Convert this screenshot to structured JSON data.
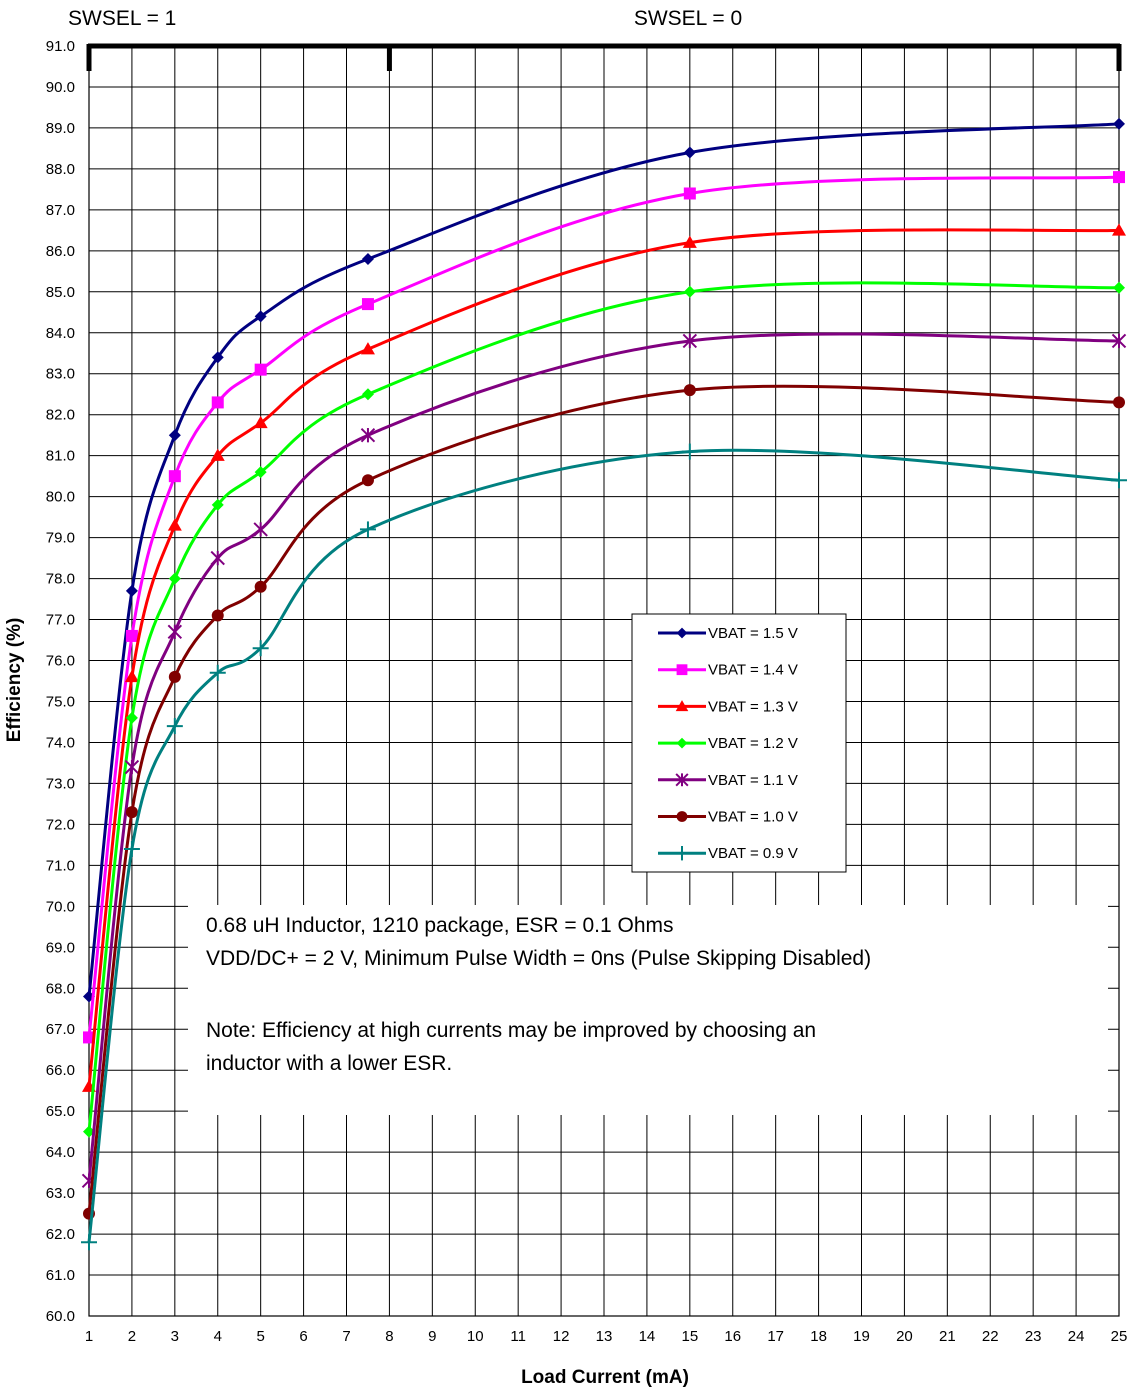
{
  "chart_data": {
    "type": "line",
    "xlabel": "Load Current (mA)",
    "ylabel": "Efficiency (%)",
    "xlim": [
      1,
      25
    ],
    "ylim": [
      60,
      91
    ],
    "x_ticks": [
      "1",
      "2",
      "3",
      "4",
      "5",
      "6",
      "7",
      "8",
      "9",
      "10",
      "11",
      "12",
      "13",
      "14",
      "15",
      "16",
      "17",
      "18",
      "19",
      "20",
      "21",
      "22",
      "23",
      "24",
      "25"
    ],
    "y_ticks": [
      "60.0",
      "61.0",
      "62.0",
      "63.0",
      "64.0",
      "65.0",
      "66.0",
      "67.0",
      "68.0",
      "69.0",
      "70.0",
      "71.0",
      "72.0",
      "73.0",
      "74.0",
      "75.0",
      "76.0",
      "77.0",
      "78.0",
      "79.0",
      "80.0",
      "81.0",
      "82.0",
      "83.0",
      "84.0",
      "85.0",
      "86.0",
      "87.0",
      "88.0",
      "89.0",
      "90.0",
      "91.0"
    ],
    "grid": true,
    "legend_position": "right-middle",
    "x": [
      1,
      2,
      3,
      4,
      5,
      7.5,
      15,
      25
    ],
    "series": [
      {
        "name": "VBAT = 1.5 V",
        "color": "#000080",
        "marker": "diamond",
        "values": [
          67.8,
          77.7,
          81.5,
          83.4,
          84.4,
          85.8,
          88.4,
          89.1
        ]
      },
      {
        "name": "VBAT = 1.4 V",
        "color": "#ff00ff",
        "marker": "square",
        "values": [
          66.8,
          76.6,
          80.5,
          82.3,
          83.1,
          84.7,
          87.4,
          87.8
        ]
      },
      {
        "name": "VBAT = 1.3 V",
        "color": "#ff0000",
        "marker": "triangle",
        "values": [
          65.6,
          75.6,
          79.3,
          81.0,
          81.8,
          83.6,
          86.2,
          86.5
        ]
      },
      {
        "name": "VBAT = 1.2 V",
        "color": "#00ff00",
        "marker": "diamond",
        "values": [
          64.5,
          74.6,
          78.0,
          79.8,
          80.6,
          82.5,
          85.0,
          85.1
        ]
      },
      {
        "name": "VBAT = 1.1 V",
        "color": "#800080",
        "marker": "star",
        "values": [
          63.3,
          73.4,
          76.7,
          78.5,
          79.2,
          81.5,
          83.8,
          83.8
        ]
      },
      {
        "name": "VBAT = 1.0 V",
        "color": "#800000",
        "marker": "circle",
        "values": [
          62.5,
          72.3,
          75.6,
          77.1,
          77.8,
          80.4,
          82.6,
          82.3
        ]
      },
      {
        "name": "VBAT = 0.9 V",
        "color": "#008080",
        "marker": "plus",
        "values": [
          61.8,
          71.4,
          74.4,
          75.7,
          76.3,
          79.2,
          81.1,
          80.4
        ]
      }
    ],
    "annotations": {
      "swsel_left": "SWSEL = 1",
      "swsel_right": "SWSEL = 0",
      "swsel_boundary_x": 8,
      "note_line1": "0.68 uH Inductor, 1210 package, ESR = 0.1 Ohms",
      "note_line2": "VDD/DC+ = 2 V, Minimum Pulse Width = 0ns (Pulse Skipping Disabled)",
      "note_line3": "Note: Efficiency at high currents may be improved by choosing an",
      "note_line4": "inductor with a lower ESR."
    }
  }
}
